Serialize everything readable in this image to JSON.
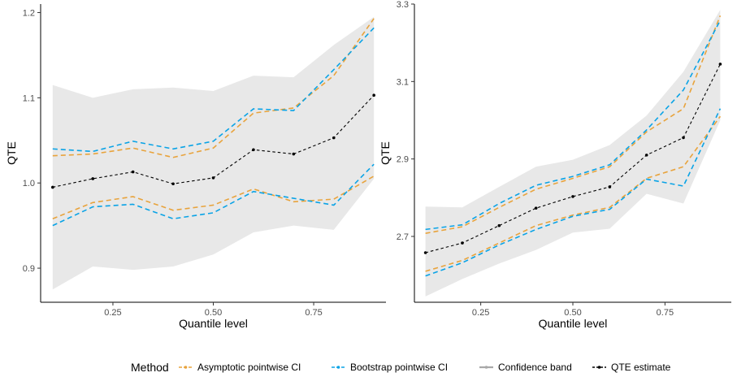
{
  "chart_data": [
    {
      "type": "line",
      "xlabel": "Quantile level",
      "ylabel": "QTE",
      "xlim": [
        0.07,
        0.93
      ],
      "ylim": [
        0.86,
        1.21
      ],
      "x_ticks": [
        0.25,
        0.5,
        0.75
      ],
      "x_tick_labels": [
        "0.25",
        "0.50",
        "0.75"
      ],
      "y_ticks": [
        0.9,
        1.0,
        1.1,
        1.2
      ],
      "y_tick_labels": [
        "0.9",
        "1.0",
        "1.1",
        "1.2"
      ],
      "x": [
        0.1,
        0.2,
        0.3,
        0.4,
        0.5,
        0.6,
        0.7,
        0.8,
        0.9
      ],
      "band_upper": [
        1.115,
        1.1,
        1.11,
        1.112,
        1.108,
        1.126,
        1.124,
        1.162,
        1.195
      ],
      "band_lower": [
        0.875,
        0.902,
        0.898,
        0.902,
        0.916,
        0.942,
        0.95,
        0.945,
        1.005
      ],
      "asym_upper": [
        1.032,
        1.034,
        1.041,
        1.03,
        1.041,
        1.082,
        1.088,
        1.126,
        1.193
      ],
      "asym_lower": [
        0.958,
        0.977,
        0.984,
        0.968,
        0.974,
        0.993,
        0.978,
        0.981,
        1.008
      ],
      "boot_upper": [
        1.04,
        1.037,
        1.049,
        1.04,
        1.049,
        1.087,
        1.085,
        1.133,
        1.182
      ],
      "boot_lower": [
        0.95,
        0.972,
        0.975,
        0.958,
        0.965,
        0.99,
        0.982,
        0.974,
        1.022
      ],
      "qte": [
        0.995,
        1.005,
        1.013,
        0.999,
        1.006,
        1.039,
        1.034,
        1.053,
        1.103
      ]
    },
    {
      "type": "line",
      "xlabel": "Quantile level",
      "ylabel": "QTE",
      "xlim": [
        0.07,
        0.93
      ],
      "ylim": [
        2.53,
        3.3
      ],
      "x_ticks": [
        0.25,
        0.5,
        0.75
      ],
      "x_tick_labels": [
        "0.25",
        "0.50",
        "0.75"
      ],
      "y_ticks": [
        2.7,
        2.9,
        3.1,
        3.3
      ],
      "y_tick_labels": [
        "2.7",
        "2.9",
        "3.1",
        "3.3"
      ],
      "x": [
        0.1,
        0.2,
        0.3,
        0.4,
        0.5,
        0.6,
        0.7,
        0.8,
        0.9
      ],
      "band_upper": [
        2.777,
        2.775,
        2.828,
        2.88,
        2.898,
        2.936,
        3.012,
        3.125,
        3.285
      ],
      "band_lower": [
        2.545,
        2.59,
        2.63,
        2.665,
        2.71,
        2.72,
        2.81,
        2.785,
        3.0
      ],
      "asym_upper": [
        2.708,
        2.725,
        2.775,
        2.822,
        2.85,
        2.88,
        2.97,
        3.03,
        3.27
      ],
      "asym_lower": [
        2.61,
        2.638,
        2.683,
        2.728,
        2.755,
        2.775,
        2.85,
        2.88,
        3.01
      ],
      "boot_upper": [
        2.718,
        2.73,
        2.785,
        2.832,
        2.855,
        2.885,
        2.975,
        3.078,
        3.258
      ],
      "boot_lower": [
        2.598,
        2.632,
        2.678,
        2.718,
        2.752,
        2.77,
        2.848,
        2.83,
        3.03
      ],
      "qte": [
        2.658,
        2.683,
        2.728,
        2.773,
        2.803,
        2.828,
        2.91,
        2.955,
        3.145
      ]
    }
  ],
  "legend": {
    "title": "Method",
    "items": [
      {
        "label": "Asymptotic pointwise CI",
        "color": "#e8a33c",
        "dash": "dashed",
        "key": "asym"
      },
      {
        "label": "Bootstrap pointwise CI",
        "color": "#0aa3e6",
        "dash": "dashed",
        "key": "boot"
      },
      {
        "label": "Confidence band",
        "color": "#a8a8a8",
        "dash": "solid",
        "key": "band"
      },
      {
        "label": "QTE estimate",
        "color": "#000000",
        "dash": "dashed",
        "key": "qte"
      }
    ]
  },
  "colors": {
    "band_fill": "#e8e8e8",
    "asym": "#e8a33c",
    "boot": "#0aa3e6",
    "qte": "#000000",
    "axis": "#000000",
    "tick_text": "#4d4d4d"
  }
}
